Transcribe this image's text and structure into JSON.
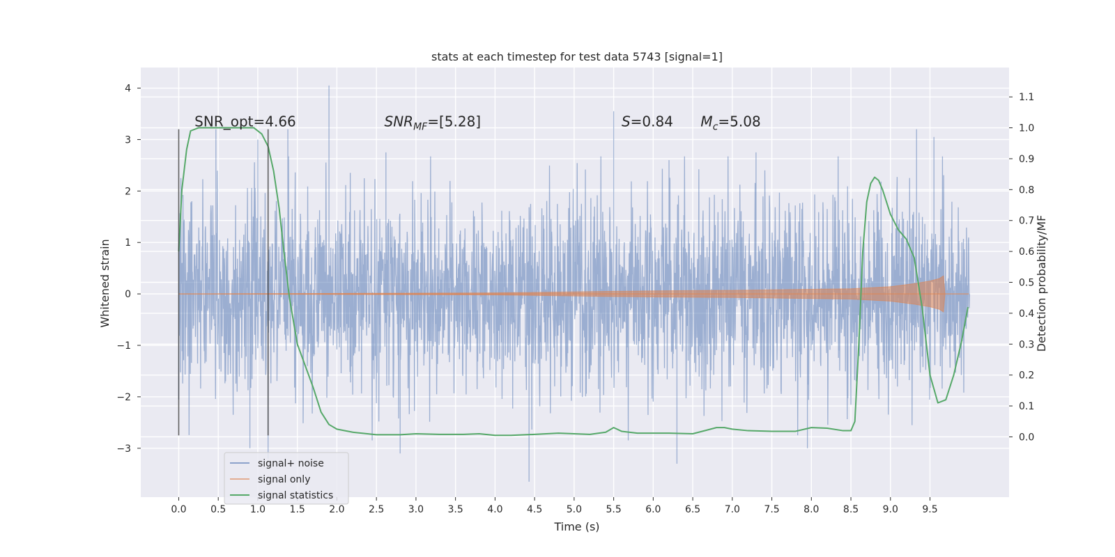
{
  "chart_data": {
    "type": "line",
    "title": "stats at each timestep for test data 5743 [signal=1]",
    "xlabel": "Time (s)",
    "ylabel": "Whitened strain",
    "ylabel_right": "Detection probability/MF",
    "xlim": [
      -0.48,
      10.5
    ],
    "ylim": [
      -3.95,
      4.4
    ],
    "ylim_right": [
      -0.195,
      1.195
    ],
    "x_ticks": [
      0.0,
      0.5,
      1.0,
      1.5,
      2.0,
      2.5,
      3.0,
      3.5,
      4.0,
      4.5,
      5.0,
      5.5,
      6.0,
      6.5,
      7.0,
      7.5,
      8.0,
      8.5,
      9.0,
      9.5
    ],
    "x_tick_labels": [
      "0.0",
      "0.5",
      "1.0",
      "1.5",
      "2.0",
      "2.5",
      "3.0",
      "3.5",
      "4.0",
      "4.5",
      "5.0",
      "5.5",
      "6.0",
      "6.5",
      "7.0",
      "7.5",
      "8.0",
      "8.5",
      "9.0",
      "9.5"
    ],
    "y_ticks": [
      -3,
      -2,
      -1,
      0,
      1,
      2,
      3,
      4
    ],
    "y_tick_labels": [
      "−3",
      "−2",
      "−1",
      "0",
      "1",
      "2",
      "3",
      "4"
    ],
    "y_ticks_right": [
      0.0,
      0.1,
      0.2,
      0.3,
      0.4,
      0.5,
      0.6,
      0.7,
      0.8,
      0.9,
      1.0,
      1.1
    ],
    "y_tick_labels_right": [
      "0.0",
      "0.1",
      "0.2",
      "0.3",
      "0.4",
      "0.5",
      "0.6",
      "0.7",
      "0.8",
      "0.9",
      "1.0",
      "1.1"
    ],
    "grid": true,
    "legend_position": "bottom-left",
    "annotations": [
      {
        "text": "SNR_opt=4.66",
        "x": 0.2,
        "y": 3.35
      },
      {
        "text": "SNR_MF=[5.28]",
        "x": 2.6,
        "y": 3.35
      },
      {
        "text": "S=0.84",
        "x": 5.6,
        "y": 3.35
      },
      {
        "text": "M_c=5.08",
        "x": 6.6,
        "y": 3.35
      }
    ],
    "vlines": [
      {
        "x": 0.0,
        "ymin": -2.75,
        "ymax": 3.2
      },
      {
        "x": 1.13,
        "ymin": -2.75,
        "ymax": 3.2
      }
    ],
    "series": [
      {
        "name": "signal+ noise",
        "color": "#4c72b0",
        "axis": "left",
        "t_range": [
          0.0,
          10.0
        ],
        "band_typical": [
          -1.45,
          1.45
        ],
        "band_extreme": [
          -3.65,
          4.05
        ],
        "peaks_high": [
          [
            0.47,
            3.2
          ],
          [
            1.0,
            3.0
          ],
          [
            1.38,
            3.2
          ],
          [
            1.9,
            4.05
          ],
          [
            2.62,
            2.75
          ],
          [
            5.5,
            3.55
          ],
          [
            9.33,
            3.2
          ],
          [
            9.55,
            3.05
          ],
          [
            7.3,
            2.75
          ],
          [
            6.2,
            2.6
          ]
        ],
        "peaks_low": [
          [
            4.43,
            -3.65
          ],
          [
            6.3,
            -3.3
          ],
          [
            2.8,
            -3.1
          ],
          [
            0.9,
            -3.0
          ],
          [
            1.13,
            -3.2
          ],
          [
            7.95,
            -3.0
          ]
        ]
      },
      {
        "name": "signal only",
        "color": "#dd8452",
        "axis": "left",
        "envelope": [
          [
            0.0,
            0.0
          ],
          [
            2.0,
            0.01
          ],
          [
            4.0,
            0.02
          ],
          [
            6.0,
            0.06
          ],
          [
            7.0,
            0.07
          ],
          [
            8.0,
            0.09
          ],
          [
            8.5,
            0.1
          ],
          [
            9.0,
            0.14
          ],
          [
            9.3,
            0.2
          ],
          [
            9.5,
            0.25
          ],
          [
            9.62,
            0.3
          ],
          [
            9.67,
            0.35
          ],
          [
            9.69,
            0.0
          ]
        ]
      },
      {
        "name": "signal statistics",
        "color": "#55a868",
        "axis": "right",
        "x": [
          0.0,
          0.04,
          0.1,
          0.15,
          0.25,
          0.4,
          0.6,
          0.8,
          0.95,
          1.05,
          1.13,
          1.2,
          1.27,
          1.33,
          1.4,
          1.5,
          1.6,
          1.7,
          1.8,
          1.9,
          2.0,
          2.2,
          2.5,
          2.8,
          3.0,
          3.3,
          3.6,
          3.8,
          4.0,
          4.2,
          4.5,
          4.8,
          5.0,
          5.2,
          5.4,
          5.5,
          5.6,
          5.8,
          6.0,
          6.2,
          6.5,
          6.8,
          6.9,
          7.0,
          7.2,
          7.5,
          7.8,
          8.0,
          8.2,
          8.4,
          8.5,
          8.55,
          8.6,
          8.65,
          8.7,
          8.75,
          8.8,
          8.85,
          8.9,
          9.0,
          9.1,
          9.2,
          9.3,
          9.4,
          9.5,
          9.6,
          9.7,
          9.8,
          9.9,
          9.98
        ],
        "y": [
          0.6,
          0.8,
          0.93,
          0.99,
          1.0,
          1.0,
          1.0,
          1.0,
          1.0,
          0.98,
          0.94,
          0.86,
          0.74,
          0.6,
          0.45,
          0.3,
          0.23,
          0.16,
          0.08,
          0.04,
          0.025,
          0.015,
          0.007,
          0.007,
          0.01,
          0.008,
          0.008,
          0.01,
          0.005,
          0.005,
          0.008,
          0.012,
          0.01,
          0.008,
          0.015,
          0.03,
          0.018,
          0.012,
          0.012,
          0.012,
          0.01,
          0.03,
          0.03,
          0.025,
          0.02,
          0.018,
          0.018,
          0.03,
          0.028,
          0.02,
          0.02,
          0.05,
          0.3,
          0.6,
          0.76,
          0.82,
          0.84,
          0.83,
          0.8,
          0.72,
          0.67,
          0.64,
          0.58,
          0.42,
          0.2,
          0.11,
          0.12,
          0.2,
          0.31,
          0.42
        ]
      }
    ]
  }
}
